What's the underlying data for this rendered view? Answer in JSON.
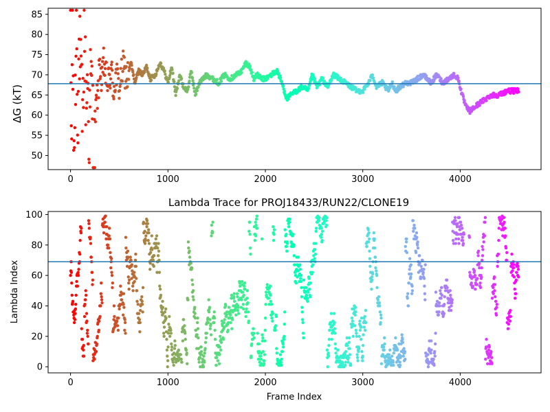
{
  "chart_data": [
    {
      "type": "scatter",
      "title": "",
      "xlabel": "",
      "ylabel": "ΔG (kT)",
      "xlim": [
        -230,
        4830
      ],
      "ylim": [
        46.5,
        86.5
      ],
      "xticks": [
        0,
        1000,
        2000,
        3000,
        4000
      ],
      "yticks": [
        50,
        55,
        60,
        65,
        70,
        75,
        80,
        85
      ],
      "colormap": "rainbow (red at frame 0 → violet at last frame)",
      "hline": 67.8,
      "hline_color": "#1f77b4",
      "grid": false,
      "legend": "none",
      "series": [
        {
          "x": [
            0,
            10,
            20,
            30,
            45,
            60,
            75,
            90,
            100,
            110,
            125,
            140,
            160,
            175,
            190,
            205,
            220,
            240,
            255,
            270,
            285,
            300,
            320,
            340,
            360,
            380,
            400,
            420,
            440,
            470,
            500,
            540,
            580,
            620,
            660,
            700,
            740,
            780,
            820,
            870,
            920,
            960,
            1000,
            1040,
            1080,
            1120,
            1160,
            1200,
            1240,
            1280,
            1320,
            1360,
            1400,
            1460,
            1520,
            1580,
            1640,
            1700,
            1760,
            1800,
            1840,
            1880,
            1920,
            1960,
            2000,
            2060,
            2120,
            2170,
            2220,
            2260,
            2320,
            2380,
            2440,
            2480,
            2530,
            2580,
            2640,
            2700,
            2760,
            2820,
            2880,
            2940,
            3000,
            3060,
            3100,
            3140,
            3200,
            3260,
            3300,
            3340,
            3380,
            3440,
            3500,
            3560,
            3620,
            3660,
            3700,
            3760,
            3820,
            3880,
            3940,
            3980,
            4020,
            4060,
            4100,
            4150,
            4200,
            4260,
            4320,
            4400,
            4480,
            4560,
            4600
          ],
          "y": [
            80,
            50,
            84,
            53,
            58,
            85,
            60,
            78,
            72,
            66,
            57,
            81,
            63,
            70,
            55,
            68,
            67,
            48,
            60,
            64,
            66,
            74,
            67,
            73,
            70,
            68,
            69,
            71,
            66,
            70,
            67,
            72,
            69,
            73,
            68,
            71,
            70,
            72,
            69,
            70,
            73,
            71,
            68,
            72,
            65,
            70,
            67,
            66,
            71,
            65,
            68,
            69,
            70,
            69,
            68,
            70,
            69,
            70,
            71,
            73,
            72,
            69,
            70,
            69,
            69,
            70,
            71,
            68,
            64,
            65,
            66,
            67,
            66,
            70,
            67,
            69,
            67,
            70,
            69,
            68,
            67,
            66,
            66,
            68,
            70,
            67,
            68,
            66,
            68,
            66,
            67,
            68,
            68,
            69,
            70,
            69,
            68,
            70,
            68,
            69,
            70,
            69,
            65,
            62,
            61,
            62,
            63,
            64,
            65,
            65,
            66,
            66,
            66
          ]
        }
      ]
    },
    {
      "type": "scatter",
      "title": "Lambda Trace for PROJ18433/RUN22/CLONE19",
      "xlabel": "Frame Index",
      "ylabel": "Lambda Index",
      "xlim": [
        -230,
        4830
      ],
      "ylim": [
        -4,
        102
      ],
      "xticks": [
        0,
        1000,
        2000,
        3000,
        4000
      ],
      "yticks": [
        0,
        20,
        40,
        60,
        80,
        100
      ],
      "colormap": "rainbow (red at frame 0 → violet at last frame)",
      "hline": 69,
      "hline_color": "#1f77b4",
      "grid": false,
      "legend": "none",
      "gaps": [
        [
          4040,
          4090
        ]
      ],
      "dense_cluster": {
        "x_range": [
          3920,
          4020
        ],
        "y_range": [
          80,
          100
        ]
      },
      "series": [
        {
          "description_of_values": "random walk of lambda index (0–99) sampled every frame 0–4600",
          "x_range": [
            0,
            4600
          ],
          "y_range": [
            0,
            99
          ]
        }
      ]
    }
  ]
}
